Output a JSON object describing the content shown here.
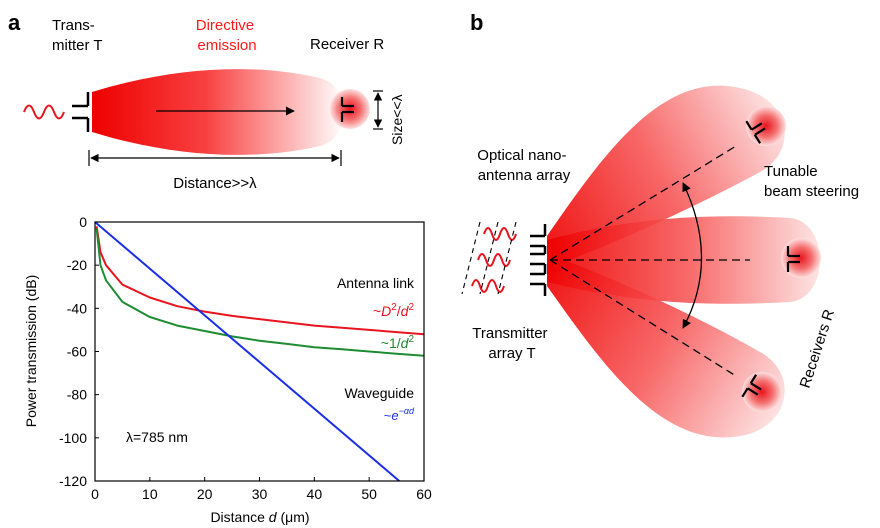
{
  "panel_a": {
    "letter": "a",
    "transmitter": [
      "Trans-",
      "mitter T"
    ],
    "emission": [
      "Directive",
      "emission"
    ],
    "receiver": "Receiver R",
    "size": "Size<<λ",
    "distance": "Distance>>λ",
    "colors": {
      "emission": "#ff0000",
      "wave": "#e8141e"
    }
  },
  "panel_b": {
    "letter": "b",
    "array_label": [
      "Optical nano-",
      "antenna array"
    ],
    "transmitter_label": [
      "Transmitter",
      "array T"
    ],
    "steering_label": [
      "Tunable",
      "beam steering"
    ],
    "receivers_label": "Receivers R"
  },
  "chart_data": {
    "type": "line",
    "xlabel_prefix": "Distance ",
    "xlabel_var": "d",
    "xlabel_unit": " (μm)",
    "ylabel": "Power transmission (dB)",
    "xlim": [
      0,
      60
    ],
    "ylim": [
      -120,
      0
    ],
    "x_ticks": [
      "0",
      "10",
      "20",
      "30",
      "40",
      "50",
      "60"
    ],
    "y_ticks": [
      "0",
      "-20",
      "-40",
      "-60",
      "-80",
      "-100",
      "-120"
    ],
    "annotation": "λ=785 nm",
    "series": [
      {
        "name": "Antenna link",
        "formula": "~D²/d²",
        "color": "#e8141e",
        "x": [
          0.3,
          1,
          2,
          5,
          10,
          15,
          20,
          25,
          30,
          35,
          40,
          45,
          50,
          55,
          60
        ],
        "y": [
          -2,
          -14,
          -20,
          -29,
          -35,
          -39,
          -41.5,
          -43.5,
          -45,
          -46.5,
          -48,
          -49,
          -50,
          -51,
          -52
        ]
      },
      {
        "name": "",
        "formula": "~1/d²",
        "color": "#1e8c32",
        "x": [
          0.3,
          1,
          2,
          5,
          10,
          15,
          20,
          25,
          30,
          35,
          40,
          45,
          50,
          55,
          60
        ],
        "y": [
          -3,
          -20,
          -27,
          -37,
          -44,
          -48,
          -50.5,
          -53,
          -55,
          -56.5,
          -58,
          -59,
          -60,
          -61,
          -62
        ]
      },
      {
        "name": "Waveguide",
        "formula": "~e^(−αd)",
        "color": "#1a2ee6",
        "x": [
          0,
          55.5
        ],
        "y": [
          0,
          -120
        ]
      }
    ],
    "labels": {
      "antenna": "Antenna link",
      "antenna_formula_pre": "~",
      "antenna_formula_D": "D",
      "antenna_formula_sup1": "2",
      "antenna_formula_slash": "/",
      "antenna_formula_d": "d",
      "antenna_formula_sup2": "2",
      "inv_pre": "~1/",
      "inv_d": "d",
      "inv_sup": "2",
      "waveguide": "Waveguide",
      "wg_pre": "~",
      "wg_e": "e",
      "wg_sup": "−αd"
    }
  }
}
